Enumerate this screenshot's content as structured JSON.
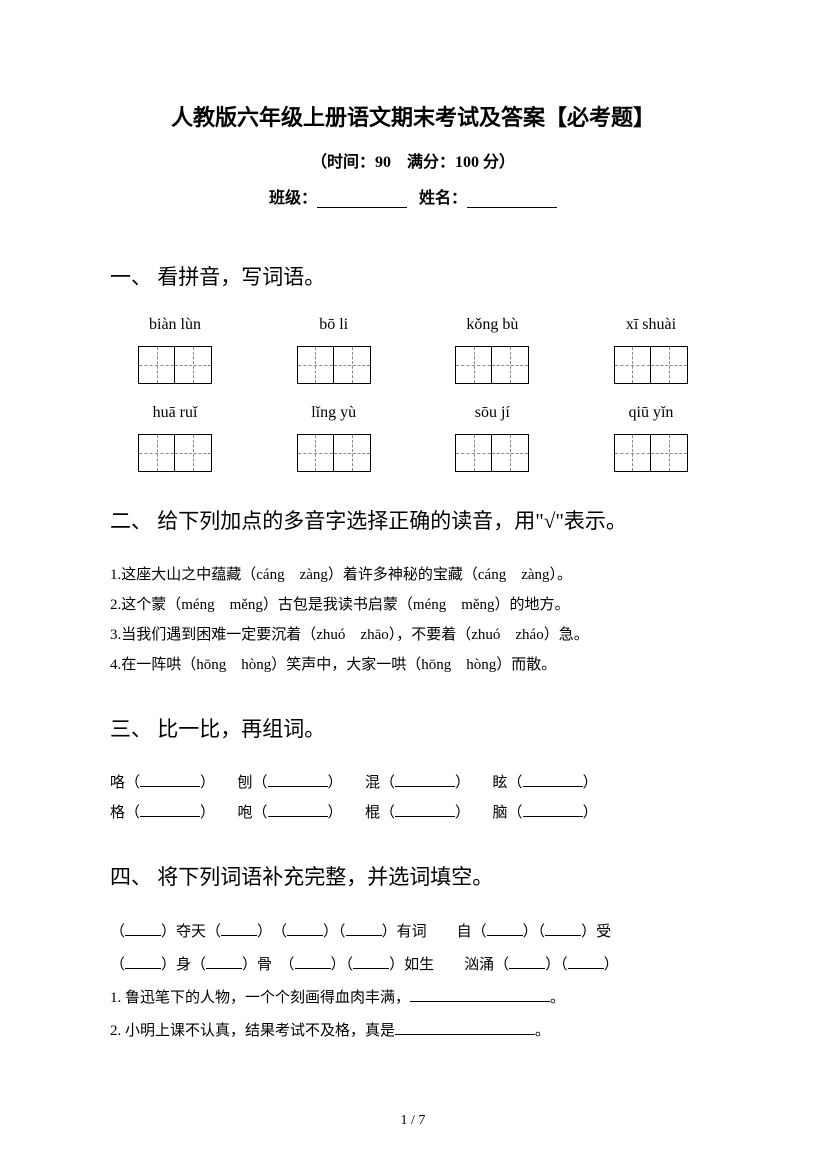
{
  "header": {
    "title": "人教版六年级上册语文期末考试及答案【必考题】",
    "subtitle": "（时间：90　满分：100 分）",
    "class_label": "班级：",
    "name_label": "姓名："
  },
  "section1": {
    "heading": "一、 看拼音，写词语。",
    "row1": [
      "biàn lùn",
      "bō li",
      "kǒng bù",
      "xī shuài"
    ],
    "row2": [
      "huā ruǐ",
      "lǐng yù",
      "sōu jí",
      "qiū yǐn"
    ]
  },
  "section2": {
    "heading": "二、 给下列加点的多音字选择正确的读音，用\"√\"表示。",
    "items": [
      "1.这座大山之中蕴藏（cáng　zàng）着许多神秘的宝藏（cáng　zàng）。",
      "2.这个蒙（méng　měng）古包是我读书启蒙（méng　měng）的地方。",
      "3.当我们遇到困难一定要沉着（zhuó　zhāo），不要着（zhuó　zháo）急。",
      "4.在一阵哄（hōng　hòng）笑声中，大家一哄（hōng　hòng）而散。"
    ]
  },
  "section3": {
    "heading": "三、 比一比，再组词。",
    "row1": [
      "咯（",
      "）　　刨（",
      "）　　混（",
      "）　　眩（",
      "）"
    ],
    "row2": [
      "格（",
      "）　　咆（",
      "）　　棍（",
      "）　　脑（",
      "）"
    ]
  },
  "section4": {
    "heading": "四、 将下列词语补充完整，并选词填空。",
    "line1_parts": [
      "（",
      "）夺天（",
      "）　（",
      "）（",
      "）有词　　自（",
      "）（",
      "）受"
    ],
    "line2_parts": [
      "（",
      "）身（",
      "）骨　（",
      "）（",
      "）如生　　汹涌（",
      "）（",
      "）"
    ],
    "q1": "1. 鲁迅笔下的人物，一个个刻画得血肉丰满，",
    "q1_end": "。",
    "q2": "2. 小明上课不认真，结果考试不及格，真是",
    "q2_end": "。"
  },
  "footer": {
    "page": "1 / 7"
  }
}
